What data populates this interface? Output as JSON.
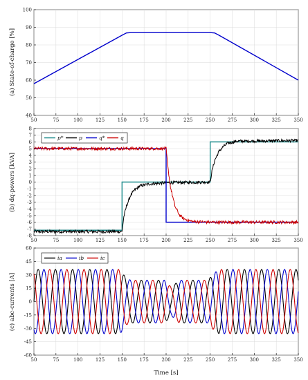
{
  "chart_data": [
    {
      "type": "line",
      "ylabel": "(a) State-of-charge [%]",
      "xlabel": "",
      "xlim": [
        50,
        350
      ],
      "ylim": [
        40,
        100
      ],
      "xticks": [
        50,
        75,
        100,
        125,
        150,
        175,
        200,
        225,
        250,
        275,
        300,
        325,
        350
      ],
      "yticks": [
        40,
        50,
        60,
        70,
        80,
        90,
        100
      ],
      "grid": true,
      "series": [
        {
          "name": "",
          "color": "#0000cc",
          "x": [
            50,
            150,
            155,
            160,
            250,
            255,
            260,
            350
          ],
          "y": [
            58,
            85.5,
            86.8,
            87,
            87,
            86.8,
            85.5,
            60
          ]
        }
      ]
    },
    {
      "type": "line",
      "ylabel": "(b) dq-powers [kVA]",
      "xlabel": "",
      "xlim": [
        50,
        350
      ],
      "ylim": [
        -8,
        8
      ],
      "xticks": [
        50,
        75,
        100,
        125,
        150,
        175,
        200,
        225,
        250,
        275,
        300,
        325,
        350
      ],
      "yticks": [
        -8,
        -7,
        -6,
        -5,
        -4,
        -3,
        -2,
        -1,
        0,
        1,
        2,
        3,
        4,
        5,
        6,
        7,
        8
      ],
      "grid": true,
      "legend": "top-left",
      "series": [
        {
          "name": "p*",
          "color": "#1a8a8a",
          "x": [
            50,
            150,
            150,
            250,
            250,
            350
          ],
          "y": [
            -7.2,
            -7.2,
            0,
            0,
            6,
            6
          ]
        },
        {
          "name": "p",
          "color": "#000000",
          "x": [
            50,
            150,
            152,
            155,
            160,
            165,
            170,
            180,
            200,
            250,
            252,
            255,
            260,
            265,
            270,
            280,
            350
          ],
          "y": [
            -7.4,
            -7.4,
            -5.2,
            -3.6,
            -1.9,
            -1.1,
            -0.6,
            -0.3,
            -0.1,
            0,
            1.6,
            3.2,
            4.6,
            5.3,
            5.8,
            6.1,
            6.2
          ]
        },
        {
          "name": "q*",
          "color": "#0000cc",
          "x": [
            50,
            200,
            200,
            350
          ],
          "y": [
            5,
            5,
            -6,
            -6
          ]
        },
        {
          "name": "q",
          "color": "#cc0000",
          "x": [
            50,
            200,
            202,
            205,
            210,
            215,
            220,
            230,
            250,
            350
          ],
          "y": [
            5,
            5,
            2.2,
            -0.8,
            -3.6,
            -4.9,
            -5.5,
            -5.9,
            -6,
            -6
          ]
        }
      ]
    },
    {
      "type": "line",
      "ylabel": "(c) abc-currents [A]",
      "xlabel": "Time [s]",
      "xlim": [
        50,
        350
      ],
      "ylim": [
        -60,
        60
      ],
      "xticks": [
        50,
        75,
        100,
        125,
        150,
        175,
        200,
        225,
        250,
        275,
        300,
        325,
        350
      ],
      "yticks": [
        -60,
        -45,
        -30,
        -15,
        0,
        15,
        30,
        45,
        60
      ],
      "grid": true,
      "legend": "top-left",
      "period_s": 19.5,
      "envelope": {
        "t": [
          50,
          148,
          152,
          155,
          160,
          175,
          198,
          202,
          206,
          215,
          248,
          252,
          260,
          350
        ],
        "amplitude": [
          36,
          36,
          30,
          26,
          24,
          24,
          24,
          20,
          16,
          24,
          24,
          30,
          36,
          36
        ]
      },
      "series": [
        {
          "name": "ia",
          "color": "#000000",
          "phase_deg": 0
        },
        {
          "name": "ib",
          "color": "#0000cc",
          "phase_deg": -120
        },
        {
          "name": "ic",
          "color": "#cc0000",
          "phase_deg": 120
        }
      ]
    }
  ]
}
